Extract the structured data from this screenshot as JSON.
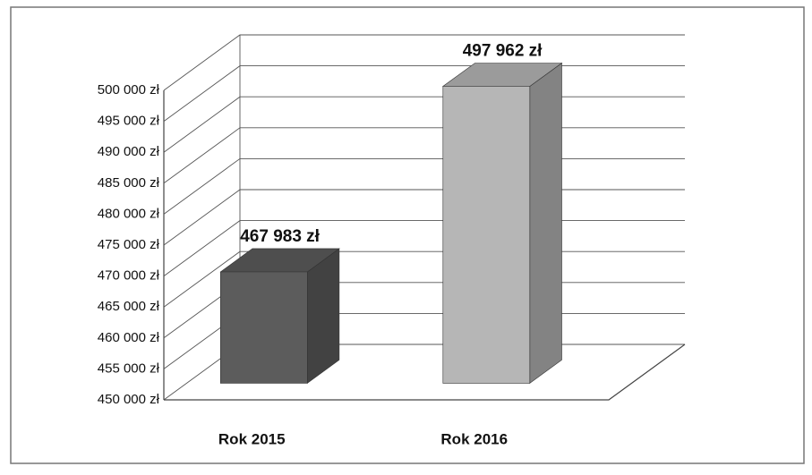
{
  "chart_data": {
    "type": "bar3d",
    "categories": [
      "Rok 2015",
      "Rok 2016"
    ],
    "values": [
      467983,
      497962
    ],
    "value_labels": [
      "467 983 zł",
      "497 962 zł"
    ],
    "colors": [
      "#5c5c5c",
      "#b6b6b6"
    ],
    "ylim": [
      450000,
      500000
    ],
    "yticks": [
      {
        "value": 450000,
        "label": "450 000 zł"
      },
      {
        "value": 455000,
        "label": "455 000 zł"
      },
      {
        "value": 460000,
        "label": "460 000 zł"
      },
      {
        "value": 465000,
        "label": "465 000 zł"
      },
      {
        "value": 470000,
        "label": "470 000 zł"
      },
      {
        "value": 475000,
        "label": "475 000 zł"
      },
      {
        "value": 480000,
        "label": "480 000 zł"
      },
      {
        "value": 485000,
        "label": "485 000 zł"
      },
      {
        "value": 490000,
        "label": "490 000 zł"
      },
      {
        "value": 495000,
        "label": "495 000 zł"
      },
      {
        "value": 500000,
        "label": "500 000 zł"
      }
    ],
    "grid": true
  }
}
